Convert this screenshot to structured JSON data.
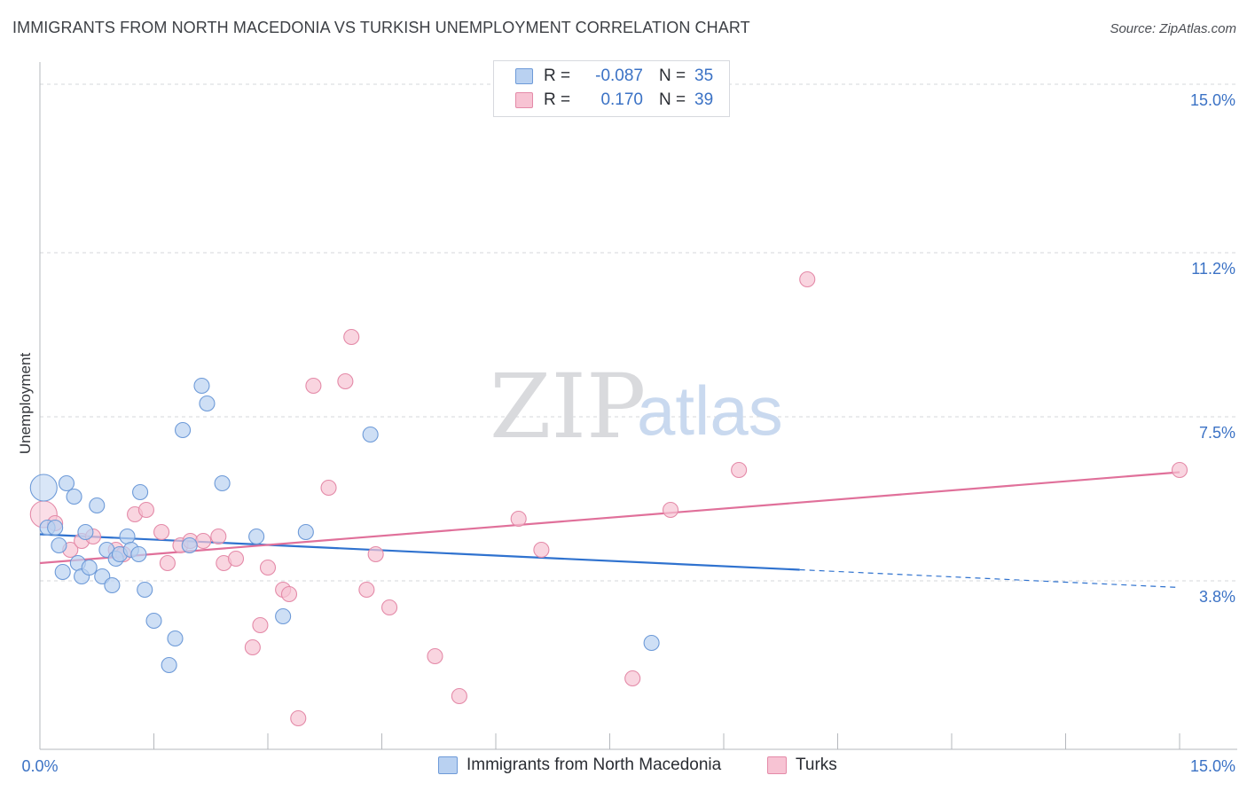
{
  "header": {
    "title": "IMMIGRANTS FROM NORTH MACEDONIA VS TURKISH UNEMPLOYMENT CORRELATION CHART",
    "source": "Source: ZipAtlas.com"
  },
  "watermark": {
    "part1": "ZIP",
    "part2": "atlas"
  },
  "legend": {
    "rows": [
      {
        "r_label": "R =",
        "r_value": "-0.087",
        "n_label": "N =",
        "n_value": "35"
      },
      {
        "r_label": "R =",
        "r_value": "0.170",
        "n_label": "N =",
        "n_value": "39"
      }
    ]
  },
  "bottom_legend": {
    "series1": "Immigrants from North Macedonia",
    "series2": "Turks"
  },
  "colors": {
    "blue_fill": "#b9d1f1",
    "blue_stroke": "#6d9ad8",
    "blue_line": "#2f72cf",
    "pink_fill": "#f7c3d3",
    "pink_stroke": "#e48aa8",
    "pink_line": "#e0709a",
    "grid": "#d5d7db",
    "tick_text": "#3b72c5"
  },
  "chart_data": {
    "type": "scatter",
    "title": "IMMIGRANTS FROM NORTH MACEDONIA VS TURKISH UNEMPLOYMENT CORRELATION CHART",
    "xlabel": "",
    "ylabel": "Unemployment",
    "xlim": [
      0,
      15
    ],
    "ylim": [
      0,
      15.5
    ],
    "x_tick_labels": [
      "0.0%",
      "15.0%"
    ],
    "y_ticks": [
      3.8,
      7.5,
      11.2,
      15.0
    ],
    "y_tick_labels": [
      "3.8%",
      "7.5%",
      "11.2%",
      "15.0%"
    ],
    "series": [
      {
        "name": "Immigrants from North Macedonia",
        "color": "blue",
        "R": -0.087,
        "N": 35,
        "points": [
          [
            0.05,
            5.9
          ],
          [
            0.1,
            5.0
          ],
          [
            0.2,
            5.0
          ],
          [
            0.25,
            4.6
          ],
          [
            0.3,
            4.0
          ],
          [
            0.35,
            6.0
          ],
          [
            0.45,
            5.7
          ],
          [
            0.5,
            4.2
          ],
          [
            0.55,
            3.9
          ],
          [
            0.6,
            4.9
          ],
          [
            0.65,
            4.1
          ],
          [
            0.75,
            5.5
          ],
          [
            0.82,
            3.9
          ],
          [
            0.88,
            4.5
          ],
          [
            0.95,
            3.7
          ],
          [
            1.0,
            4.3
          ],
          [
            1.05,
            4.4
          ],
          [
            1.15,
            4.8
          ],
          [
            1.2,
            4.5
          ],
          [
            1.3,
            4.4
          ],
          [
            1.32,
            5.8
          ],
          [
            1.38,
            3.6
          ],
          [
            1.5,
            2.9
          ],
          [
            1.7,
            1.9
          ],
          [
            1.78,
            2.5
          ],
          [
            1.88,
            7.2
          ],
          [
            1.97,
            4.6
          ],
          [
            2.13,
            8.2
          ],
          [
            2.2,
            7.8
          ],
          [
            2.4,
            6.0
          ],
          [
            2.85,
            4.8
          ],
          [
            3.2,
            3.0
          ],
          [
            3.5,
            4.9
          ],
          [
            4.35,
            7.1
          ],
          [
            8.05,
            2.4
          ]
        ],
        "trend": {
          "x0": 0.0,
          "y0": 4.85,
          "x1": 10.0,
          "y1": 4.05,
          "dashed_to_x": 15.0,
          "dashed_to_y": 3.65
        }
      },
      {
        "name": "Turks",
        "color": "pink",
        "R": 0.17,
        "N": 39,
        "points": [
          [
            0.05,
            5.3
          ],
          [
            0.2,
            5.1
          ],
          [
            0.4,
            4.5
          ],
          [
            0.55,
            4.7
          ],
          [
            0.7,
            4.8
          ],
          [
            1.0,
            4.5
          ],
          [
            1.1,
            4.4
          ],
          [
            1.25,
            5.3
          ],
          [
            1.4,
            5.4
          ],
          [
            1.6,
            4.9
          ],
          [
            1.68,
            4.2
          ],
          [
            1.85,
            4.6
          ],
          [
            1.98,
            4.7
          ],
          [
            2.15,
            4.7
          ],
          [
            2.35,
            4.8
          ],
          [
            2.42,
            4.2
          ],
          [
            2.58,
            4.3
          ],
          [
            2.8,
            2.3
          ],
          [
            2.9,
            2.8
          ],
          [
            3.0,
            4.1
          ],
          [
            3.2,
            3.6
          ],
          [
            3.28,
            3.5
          ],
          [
            3.4,
            0.7
          ],
          [
            3.6,
            8.2
          ],
          [
            3.8,
            5.9
          ],
          [
            4.02,
            8.3
          ],
          [
            4.1,
            9.3
          ],
          [
            4.3,
            3.6
          ],
          [
            4.42,
            4.4
          ],
          [
            4.6,
            3.2
          ],
          [
            5.2,
            2.1
          ],
          [
            5.52,
            1.2
          ],
          [
            6.3,
            5.2
          ],
          [
            6.6,
            4.5
          ],
          [
            7.8,
            1.6
          ],
          [
            8.3,
            5.4
          ],
          [
            9.2,
            6.3
          ],
          [
            10.1,
            10.6
          ],
          [
            15.0,
            6.3
          ]
        ],
        "trend": {
          "x0": 0.0,
          "y0": 4.2,
          "x1": 15.0,
          "y1": 6.25
        }
      }
    ]
  }
}
